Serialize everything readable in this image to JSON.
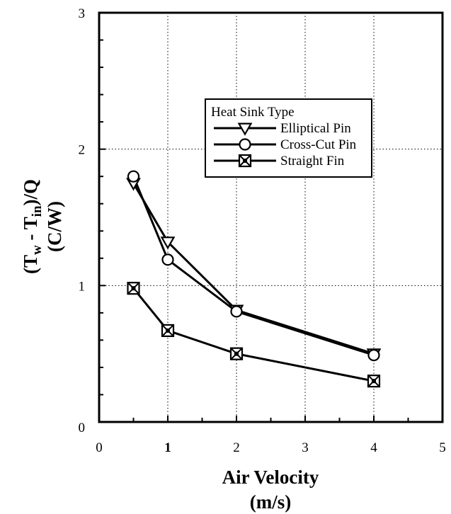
{
  "chart_data": {
    "type": "line",
    "title": "",
    "xlabel": "Air Velocity",
    "xlabel_unit": "(m/s)",
    "ylabel_line1": "(T",
    "ylabel_sub1": "w",
    "ylabel_mid": " - T",
    "ylabel_sub2": "in",
    "ylabel_end": ")/Q",
    "ylabel_unit": "(C/W)",
    "xlim": [
      0,
      5
    ],
    "ylim": [
      0,
      3
    ],
    "x_ticks": [
      0,
      1,
      2,
      3,
      4,
      5
    ],
    "x_tick_labels": [
      "0",
      "1",
      "2",
      "3",
      "4",
      "5"
    ],
    "y_ticks": [
      0,
      1,
      2,
      3
    ],
    "y_tick_labels": [
      "0",
      "1",
      "2",
      "3"
    ],
    "grid": "dotted",
    "legend_title": "Heat Sink Type",
    "legend_position": "top-right",
    "series": [
      {
        "name": "Elliptical Pin",
        "marker": "triangle-down",
        "x": [
          0.5,
          1,
          2,
          4
        ],
        "y": [
          1.75,
          1.32,
          0.82,
          0.5
        ]
      },
      {
        "name": "Cross-Cut Pin",
        "marker": "circle",
        "x": [
          0.5,
          1,
          2,
          4
        ],
        "y": [
          1.8,
          1.19,
          0.81,
          0.49
        ]
      },
      {
        "name": "Straight Fin",
        "marker": "square-x",
        "x": [
          0.5,
          1,
          2,
          4
        ],
        "y": [
          0.98,
          0.67,
          0.5,
          0.3
        ]
      }
    ]
  }
}
